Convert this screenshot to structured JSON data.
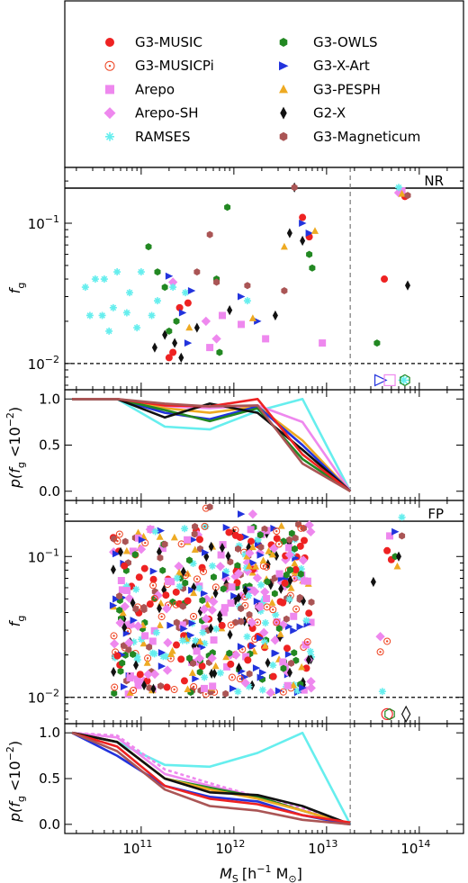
{
  "legend": {
    "entries": [
      {
        "name": "G3-MUSIC",
        "color": "#ee2222",
        "marker": "circle"
      },
      {
        "name": "G3-MUSICPi",
        "color": "#ee4422",
        "marker": "circle-open"
      },
      {
        "name": "Arepo",
        "color": "#ee88ee",
        "marker": "square"
      },
      {
        "name": "Arepo-SH",
        "color": "#ee88ee",
        "marker": "diamond"
      },
      {
        "name": "RAMSES",
        "color": "#66eeee",
        "marker": "cross"
      },
      {
        "name": "G3-OWLS",
        "color": "#228822",
        "marker": "hexagon"
      },
      {
        "name": "G3-X-Art",
        "color": "#2233dd",
        "marker": "triangle-right"
      },
      {
        "name": "G3-PESPH",
        "color": "#eeaa22",
        "marker": "triangle-up"
      },
      {
        "name": "G2-X",
        "color": "#111111",
        "marker": "thin-diamond"
      },
      {
        "name": "G3-Magneticum",
        "color": "#aa5555",
        "marker": "hexagon"
      }
    ]
  },
  "axes": {
    "xlabel": "M",
    "xlabel_sub": "S",
    "xlabel_units": "[h",
    "xlabel_units_sup": "−1",
    "xlabel_units_end": " M",
    "xlabel_units_sub": "⊙",
    "xlabel_units_close": "]",
    "fg_label": "f",
    "fg_label_sub": "g",
    "p_label": "p(f",
    "p_label_sub": "g",
    "p_label_mid": " <10",
    "p_label_sup": "−2",
    "p_label_close": ")",
    "x_ticks": [
      {
        "value": 100000000000.0,
        "label": "10",
        "exp": "11"
      },
      {
        "value": 1000000000000.0,
        "label": "10",
        "exp": "12"
      },
      {
        "value": 10000000000000.0,
        "label": "10",
        "exp": "13"
      },
      {
        "value": 100000000000000.0,
        "label": "10",
        "exp": "14"
      }
    ],
    "fg_ticks": [
      {
        "value": 0.01,
        "label": "10",
        "exp": "−2"
      },
      {
        "value": 0.1,
        "label": "10",
        "exp": "−1"
      }
    ],
    "p_ticks": [
      {
        "value": 0.0,
        "label": "0.0"
      },
      {
        "value": 0.5,
        "label": "0.5"
      },
      {
        "value": 1.0,
        "label": "1.0"
      }
    ]
  },
  "chart_data": [
    {
      "type": "scatter",
      "panel_label": "NR",
      "xscale": "log",
      "yscale": "log",
      "xlim": [
        15000000000.0,
        300000000000000.0
      ],
      "ylim": [
        0.0065,
        0.25
      ],
      "hline_solid": 0.178,
      "hline_dashed": 0.01,
      "vline_dashed": 18000000000000.0,
      "series": [
        {
          "name": "G3-MUSIC",
          "points": [
            [
              220000000000.0,
              0.012
            ],
            [
              320000000000.0,
              0.027
            ],
            [
              260000000000.0,
              0.025
            ],
            [
              200000000000.0,
              0.011
            ],
            [
              5500000000000.0,
              0.11
            ],
            [
              6500000000000.0,
              0.08
            ],
            [
              42000000000000.0,
              0.04
            ],
            [
              70000000000000.0,
              0.155
            ]
          ]
        },
        {
          "name": "G3-MUSICPi",
          "points": []
        },
        {
          "name": "Arepo",
          "points": [
            [
              750000000000.0,
              0.022
            ],
            [
              550000000000.0,
              0.013
            ],
            [
              1200000000000.0,
              0.019
            ],
            [
              2200000000000.0,
              0.015
            ],
            [
              9000000000000.0,
              0.014
            ],
            [
              65000000000000.0,
              0.17
            ]
          ]
        },
        {
          "name": "Arepo-SH",
          "points": [
            [
              220000000000.0,
              0.038
            ],
            [
              500000000000.0,
              0.02
            ],
            [
              650000000000.0,
              0.015
            ],
            [
              60000000000000.0,
              0.165
            ]
          ]
        },
        {
          "name": "RAMSES",
          "points": [
            [
              25000000000.0,
              0.035
            ],
            [
              32000000000.0,
              0.04
            ],
            [
              40000000000.0,
              0.04
            ],
            [
              55000000000.0,
              0.045
            ],
            [
              75000000000.0,
              0.032
            ],
            [
              100000000000.0,
              0.045
            ],
            [
              28000000000.0,
              0.022
            ],
            [
              38000000000.0,
              0.022
            ],
            [
              50000000000.0,
              0.025
            ],
            [
              45000000000.0,
              0.017
            ],
            [
              70000000000.0,
              0.023
            ],
            [
              130000000000.0,
              0.022
            ],
            [
              90000000000.0,
              0.018
            ],
            [
              150000000000.0,
              0.028
            ],
            [
              220000000000.0,
              0.035
            ],
            [
              300000000000.0,
              0.032
            ],
            [
              1400000000000.0,
              0.028
            ],
            [
              60000000000000.0,
              0.18
            ]
          ]
        },
        {
          "name": "G3-OWLS",
          "points": [
            [
              120000000000.0,
              0.068
            ],
            [
              150000000000.0,
              0.045
            ],
            [
              180000000000.0,
              0.035
            ],
            [
              240000000000.0,
              0.02
            ],
            [
              200000000000.0,
              0.017
            ],
            [
              650000000000.0,
              0.04
            ],
            [
              850000000000.0,
              0.13
            ],
            [
              700000000000.0,
              0.012
            ],
            [
              6500000000000.0,
              0.06
            ],
            [
              7000000000000.0,
              0.048
            ],
            [
              35000000000000.0,
              0.014
            ]
          ]
        },
        {
          "name": "G3-X-Art",
          "points": [
            [
              200000000000.0,
              0.042
            ],
            [
              350000000000.0,
              0.033
            ],
            [
              280000000000.0,
              0.023
            ],
            [
              320000000000.0,
              0.014
            ],
            [
              1200000000000.0,
              0.03
            ],
            [
              1800000000000.0,
              0.02
            ],
            [
              5500000000000.0,
              0.1
            ],
            [
              6500000000000.0,
              0.085
            ]
          ]
        },
        {
          "name": "G3-PESPH",
          "points": [
            [
              330000000000.0,
              0.018
            ],
            [
              1600000000000.0,
              0.021
            ],
            [
              3500000000000.0,
              0.068
            ],
            [
              7500000000000.0,
              0.088
            ],
            [
              65000000000000.0,
              0.162
            ]
          ]
        },
        {
          "name": "G2-X",
          "points": [
            [
              140000000000.0,
              0.013
            ],
            [
              180000000000.0,
              0.016
            ],
            [
              230000000000.0,
              0.014
            ],
            [
              270000000000.0,
              0.011
            ],
            [
              400000000000.0,
              0.018
            ],
            [
              900000000000.0,
              0.024
            ],
            [
              2800000000000.0,
              0.022
            ],
            [
              4000000000000.0,
              0.085
            ],
            [
              5500000000000.0,
              0.075
            ],
            [
              4500000000000.0,
              0.18
            ],
            [
              75000000000000.0,
              0.036
            ]
          ]
        },
        {
          "name": "G3-Magneticum",
          "points": [
            [
              550000000000.0,
              0.083
            ],
            [
              400000000000.0,
              0.045
            ],
            [
              650000000000.0,
              0.038
            ],
            [
              1400000000000.0,
              0.036
            ],
            [
              3500000000000.0,
              0.033
            ],
            [
              4500000000000.0,
              0.18
            ],
            [
              75000000000000.0,
              0.158
            ]
          ]
        }
      ],
      "open_markers_below": [
        {
          "name": "G3-X-Art",
          "x": 38000000000000.0,
          "y": 0.0076
        },
        {
          "name": "Arepo",
          "x": 48000000000000.0,
          "y": 0.0076
        },
        {
          "name": "RAMSES",
          "x": 68000000000000.0,
          "y": 0.0076
        },
        {
          "name": "G3-OWLS",
          "x": 70000000000000.0,
          "y": 0.0076
        }
      ]
    },
    {
      "type": "line",
      "panel": "NR-fraction",
      "xscale": "log",
      "xlim": [
        15000000000.0,
        300000000000000.0
      ],
      "ylim": [
        -0.1,
        1.1
      ],
      "vline_dashed": 18000000000000.0,
      "x": [
        18000000000.0,
        55000000000.0,
        180000000000.0,
        550000000000.0,
        1800000000000.0,
        5500000000000.0,
        18000000000000.0
      ],
      "series": [
        {
          "name": "RAMSES",
          "values": [
            1.0,
            1.0,
            0.7,
            0.67,
            0.87,
            1.0,
            0.0
          ]
        },
        {
          "name": "Arepo-SH",
          "values": [
            1.0,
            1.0,
            0.92,
            0.9,
            0.93,
            0.75,
            0.0
          ]
        },
        {
          "name": "G3-PESPH",
          "values": [
            1.0,
            1.0,
            0.9,
            0.85,
            0.92,
            0.55,
            0.0
          ]
        },
        {
          "name": "G3-X-Art",
          "values": [
            1.0,
            1.0,
            0.85,
            0.78,
            0.92,
            0.5,
            0.0
          ]
        },
        {
          "name": "G3-OWLS",
          "values": [
            1.0,
            1.0,
            0.88,
            0.76,
            0.9,
            0.35,
            0.0
          ]
        },
        {
          "name": "G2-X",
          "values": [
            1.0,
            1.0,
            0.8,
            0.95,
            0.85,
            0.45,
            0.0
          ]
        },
        {
          "name": "G3-MUSIC",
          "values": [
            1.0,
            1.0,
            0.93,
            0.92,
            1.0,
            0.4,
            0.0
          ]
        },
        {
          "name": "G3-Magneticum",
          "values": [
            1.0,
            1.0,
            0.95,
            0.92,
            0.93,
            0.3,
            0.0
          ]
        }
      ]
    },
    {
      "type": "scatter",
      "panel_label": "FP",
      "xscale": "log",
      "yscale": "log",
      "xlim": [
        15000000000.0,
        300000000000000.0
      ],
      "ylim": [
        0.0065,
        0.25
      ],
      "hline_solid": 0.178,
      "hline_dashed": 0.01,
      "vline_dashed": 18000000000000.0,
      "cloud": {
        "x_range": [
          50000000000.0,
          7000000000000.0
        ],
        "y_range": [
          0.0105,
          0.17
        ],
        "points_per_series": 60
      },
      "series": [
        {
          "name": "G3-MUSIC",
          "points": [
            [
              45000000000000.0,
              0.11
            ],
            [
              50000000000000.0,
              0.095
            ]
          ]
        },
        {
          "name": "G3-MUSICPi",
          "points": [
            [
              500000000000.0,
              0.22
            ],
            [
              38000000000000.0,
              0.021
            ],
            [
              45000000000000.0,
              0.025
            ]
          ]
        },
        {
          "name": "Arepo",
          "points": [
            [
              48000000000000.0,
              0.14
            ]
          ]
        },
        {
          "name": "Arepo-SH",
          "points": [
            [
              1600000000000.0,
              0.2
            ],
            [
              38000000000000.0,
              0.027
            ]
          ]
        },
        {
          "name": "RAMSES",
          "points": [
            [
              65000000000000.0,
              0.19
            ],
            [
              40000000000000.0,
              0.011
            ]
          ]
        },
        {
          "name": "G3-OWLS",
          "points": [
            [
              55000000000000.0,
              0.1
            ]
          ]
        },
        {
          "name": "G3-X-Art",
          "points": [
            [
              1200000000000.0,
              0.2
            ],
            [
              55000000000000.0,
              0.15
            ]
          ]
        },
        {
          "name": "G3-PESPH",
          "points": [
            [
              58000000000000.0,
              0.085
            ]
          ]
        },
        {
          "name": "G2-X",
          "points": [
            [
              32000000000000.0,
              0.066
            ],
            [
              60000000000000.0,
              0.1
            ]
          ]
        },
        {
          "name": "G3-Magneticum",
          "points": [
            [
              550000000000.0,
              0.225
            ],
            [
              65000000000000.0,
              0.14
            ]
          ]
        }
      ],
      "open_markers_below": [
        {
          "name": "G3-MUSIC",
          "x": 45000000000000.0,
          "y": 0.0076
        },
        {
          "name": "G3-OWLS",
          "x": 48000000000000.0,
          "y": 0.0076
        },
        {
          "name": "G2-X",
          "x": 72000000000000.0,
          "y": 0.0076
        }
      ]
    },
    {
      "type": "line",
      "panel": "FP-fraction",
      "xscale": "log",
      "xlim": [
        15000000000.0,
        300000000000000.0
      ],
      "ylim": [
        -0.1,
        1.1
      ],
      "vline_dashed": 18000000000000.0,
      "x": [
        18000000000.0,
        55000000000.0,
        180000000000.0,
        550000000000.0,
        1800000000000.0,
        5500000000000.0,
        18000000000000.0
      ],
      "series": [
        {
          "name": "RAMSES",
          "values": [
            1.0,
            0.9,
            0.65,
            0.63,
            0.78,
            1.0,
            0.0
          ]
        },
        {
          "name": "Arepo",
          "values": [
            1.0,
            0.97,
            0.6,
            0.45,
            0.3,
            0.18,
            0.0
          ],
          "dashed": true
        },
        {
          "name": "Arepo-SH",
          "values": [
            1.0,
            0.95,
            0.55,
            0.42,
            0.3,
            0.15,
            0.0
          ]
        },
        {
          "name": "G3-OWLS",
          "values": [
            1.0,
            0.9,
            0.5,
            0.4,
            0.3,
            0.15,
            0.0
          ]
        },
        {
          "name": "G3-PESPH",
          "values": [
            1.0,
            0.9,
            0.5,
            0.38,
            0.28,
            0.15,
            0.0
          ]
        },
        {
          "name": "G2-X",
          "values": [
            1.0,
            0.9,
            0.5,
            0.35,
            0.32,
            0.2,
            0.0
          ]
        },
        {
          "name": "G3-X-Art",
          "values": [
            1.0,
            0.75,
            0.42,
            0.3,
            0.25,
            0.1,
            0.0
          ]
        },
        {
          "name": "G3-MUSIC",
          "values": [
            1.0,
            0.85,
            0.42,
            0.28,
            0.22,
            0.1,
            0.02
          ]
        },
        {
          "name": "G3-Magneticum",
          "values": [
            1.0,
            0.8,
            0.38,
            0.2,
            0.15,
            0.05,
            0.0
          ]
        }
      ]
    }
  ]
}
